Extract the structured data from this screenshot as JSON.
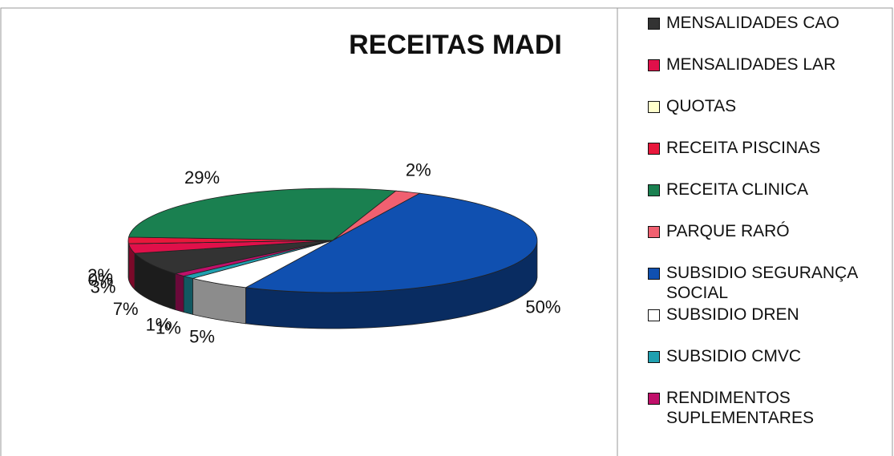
{
  "chart_data": {
    "type": "pie3d",
    "title": "RECEITAS MADI",
    "categories": [
      "MENSALIDADES CAO",
      "MENSALIDADES LAR",
      "QUOTAS",
      "RECEITA PISCINAS",
      "RECEITA CLINICA",
      "PARQUE RARÓ",
      "SUBSIDIO SEGURANÇA SOCIAL",
      "SUBSIDIO DREN",
      "SUBSIDIO CMVC",
      "RENDIMENTOS SUPLEMENTARES"
    ],
    "values": [
      7,
      3,
      0,
      2,
      29,
      2,
      50,
      5,
      1,
      1
    ],
    "value_labels": [
      "7%",
      "3%",
      "0%",
      "2%",
      "29%",
      "2%",
      "50%",
      "5%",
      "1%",
      "1%"
    ],
    "colors": [
      "#333333",
      "#e0104a",
      "#ffffcc",
      "#e8183c",
      "#1a8050",
      "#f06070",
      "#1050b0",
      "#ffffff",
      "#20a0b0",
      "#c0106a"
    ],
    "legend": "right"
  }
}
